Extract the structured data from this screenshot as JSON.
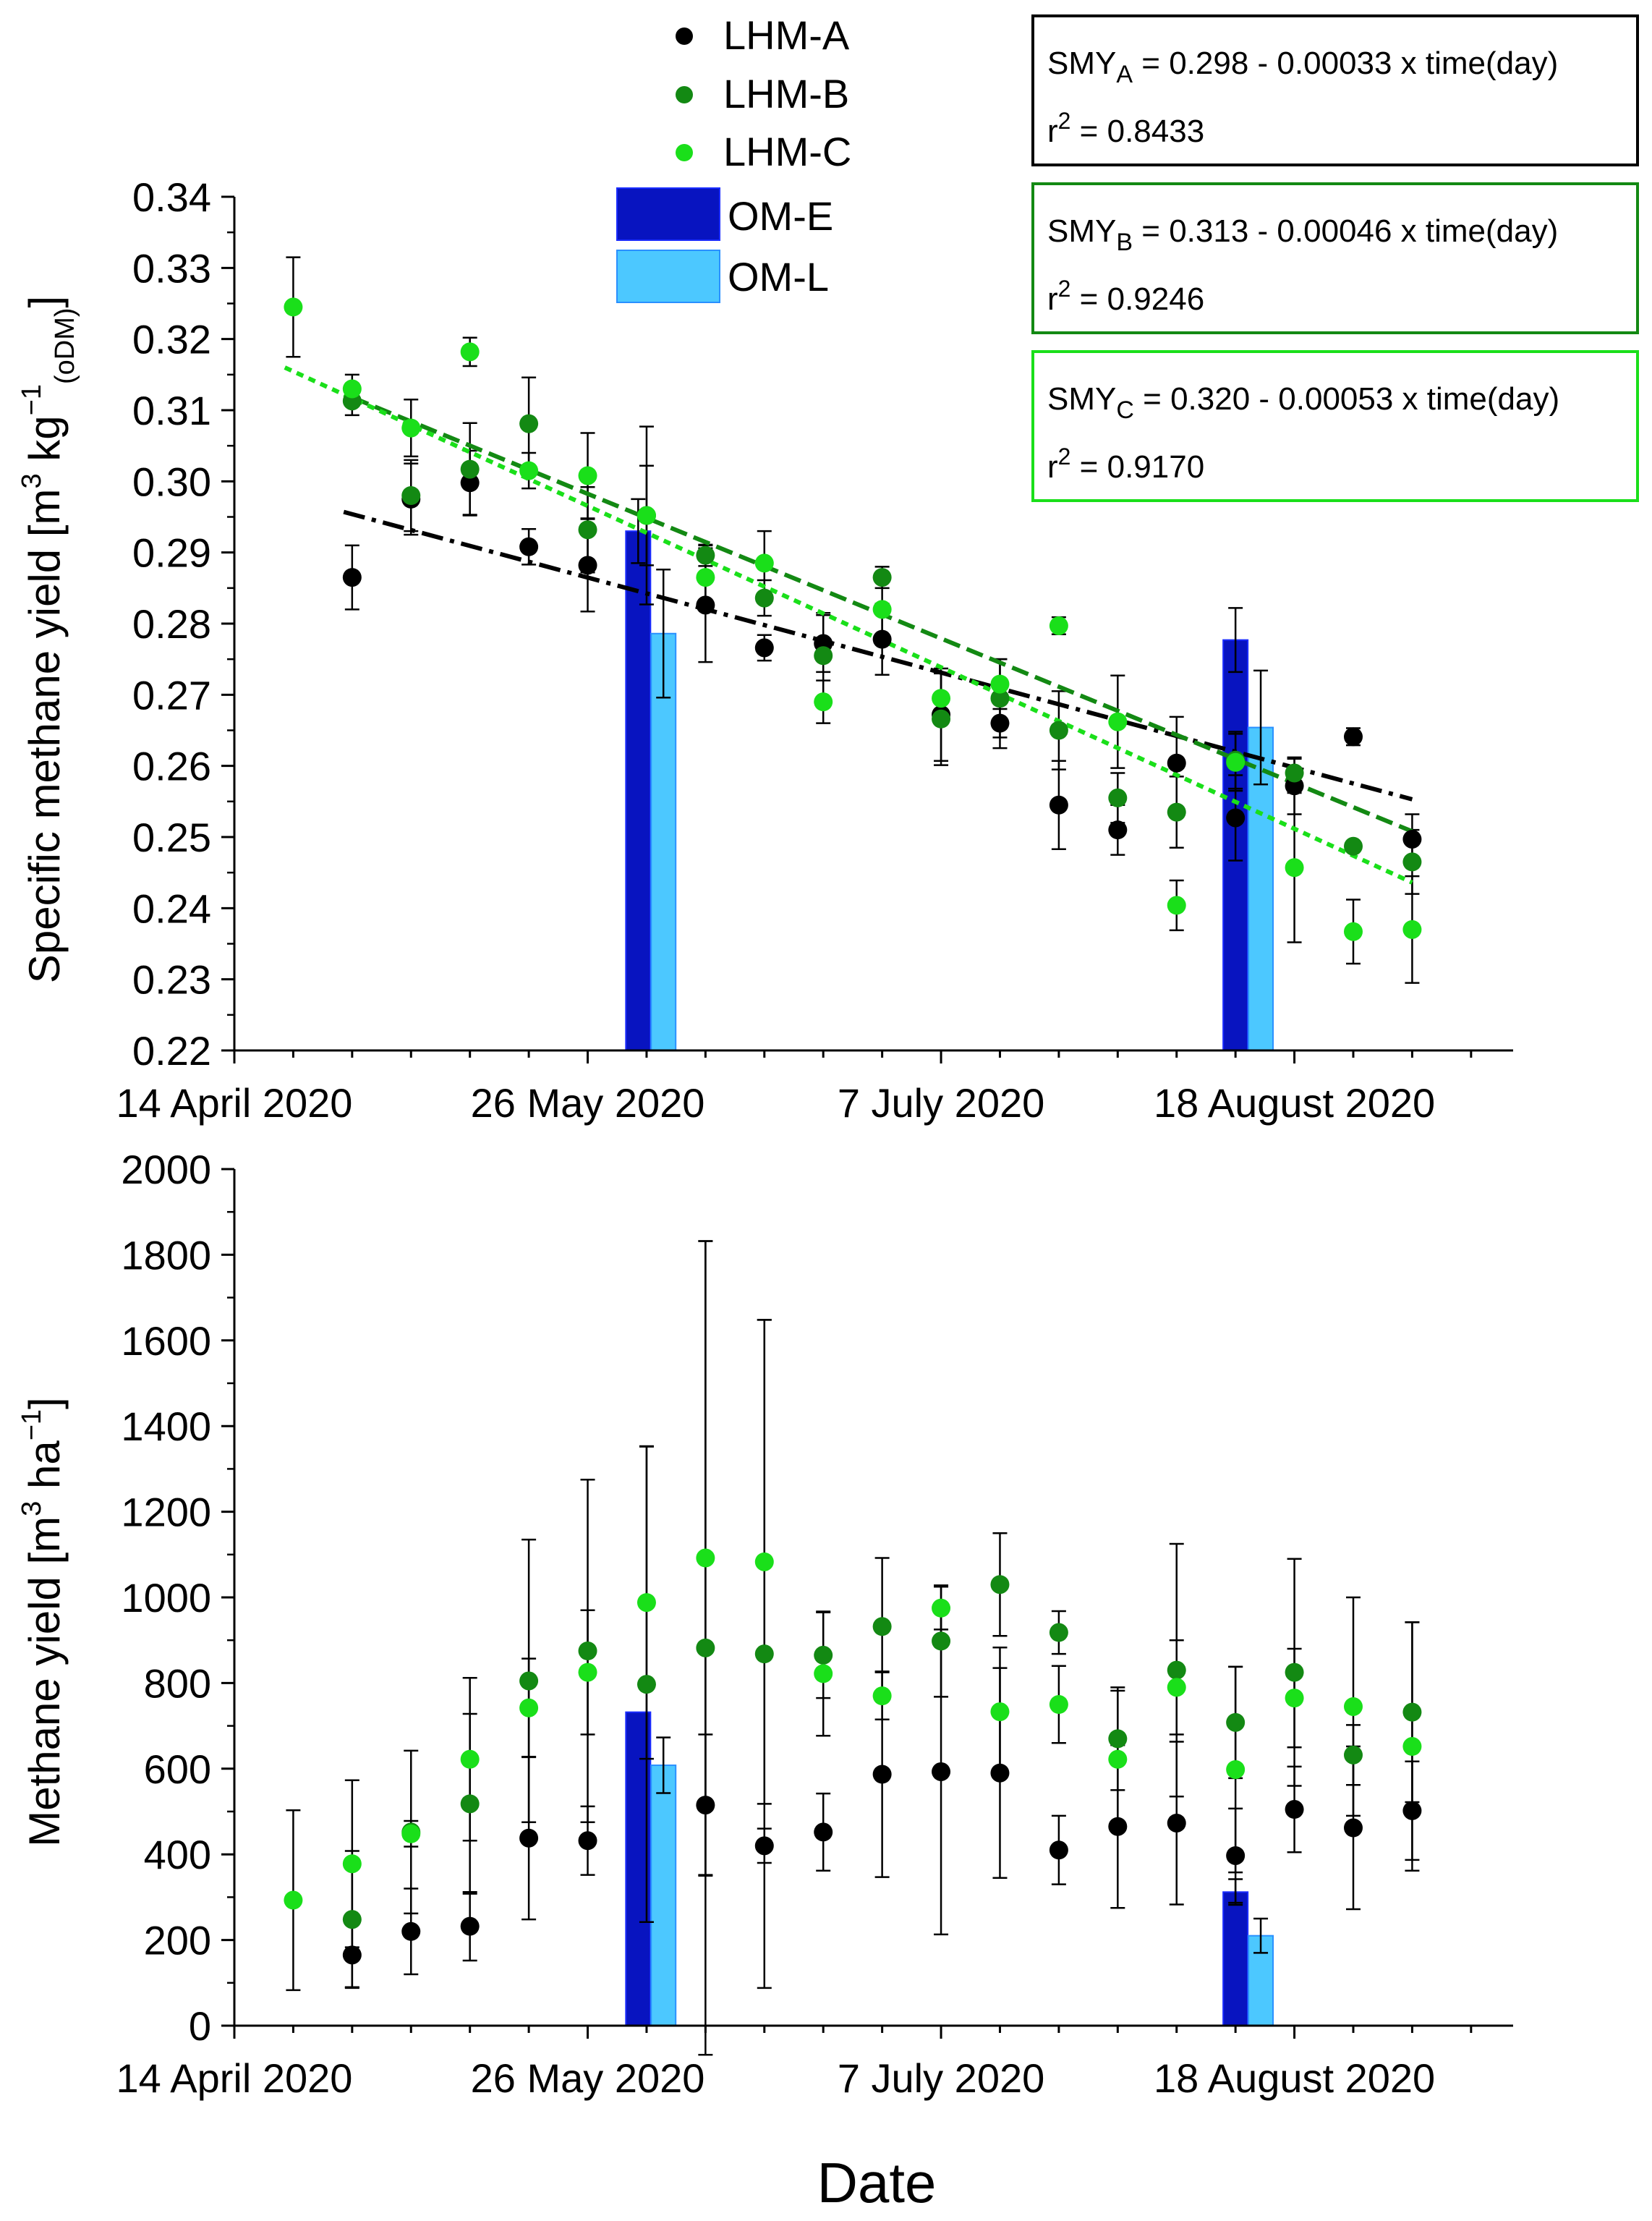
{
  "colors": {
    "LHM-A": "#000000",
    "LHM-B": "#138913",
    "LHM-C": "#1adf1a",
    "OM-E": "#0814c0",
    "OM-L": "#4cc8ff"
  },
  "x_axis": {
    "title": "Date",
    "tick_labels": [
      "14 April 2020",
      "26 May 2020",
      "7 July 2020",
      "18 August 2020"
    ],
    "tick_days": [
      0,
      42,
      84,
      126
    ],
    "range_days": [
      0,
      152
    ]
  },
  "legend": {
    "entries": [
      "LHM-A",
      "LHM-B",
      "LHM-C",
      "OM-E",
      "OM-L"
    ]
  },
  "regressions": [
    {
      "name": "SMYA",
      "sub": "A",
      "slope_text": " = 0.298 - 0.00033 x time(day)",
      "r2_label": "r",
      "r2_value": " = 0.8433",
      "color": "#000000"
    },
    {
      "name": "SMYB",
      "sub": "B",
      "slope_text": " = 0.313 - 0.00046 x time(day)",
      "r2_label": "r",
      "r2_value": " = 0.9246",
      "color": "#138913"
    },
    {
      "name": "SMYC",
      "sub": "C",
      "slope_text": " = 0.320 - 0.00053 x time(day)",
      "r2_label": "r",
      "r2_value": " = 0.9170",
      "color": "#1adf1a"
    }
  ],
  "chart_data": [
    {
      "type": "scatter",
      "title": "",
      "ylabel": "Specific methane yield [m3 kg-1 (oDM)]",
      "ylabel_parts": [
        "Specific methane yield [m",
        "3",
        " kg",
        "−1",
        "(oDM)",
        "]"
      ],
      "xlabel": "",
      "ylim": [
        0.22,
        0.34
      ],
      "yticks": [
        0.22,
        0.23,
        0.24,
        0.25,
        0.26,
        0.27,
        0.28,
        0.29,
        0.3,
        0.31,
        0.32,
        0.33,
        0.34
      ],
      "yticks_labels": [
        "0.22",
        "0.23",
        "0.24",
        "0.25",
        "0.26",
        "0.27",
        "0.28",
        "0.29",
        "0.30",
        "0.31",
        "0.32",
        "0.33",
        "0.34"
      ],
      "series": [
        {
          "name": "LHM-A",
          "x": [
            14,
            21,
            28,
            35,
            42,
            56,
            63,
            70,
            77,
            84,
            91,
            98,
            105,
            112,
            119,
            126,
            133,
            140
          ],
          "y": [
            0.2865,
            0.2975,
            0.2998,
            0.2908,
            0.2882,
            0.2826,
            0.2766,
            0.2772,
            0.2778,
            0.2672,
            0.266,
            0.2545,
            0.251,
            0.2604,
            0.2527,
            0.2572,
            0.2641,
            0.2497
          ],
          "err": [
            0.0045,
            0.005,
            0.0045,
            0.0025,
            0.0065,
            0.008,
            0.0018,
            0.004,
            0.005,
            0.0065,
            0.0035,
            0.0062,
            0.0035,
            0.0065,
            0.006,
            0.004,
            0.0012,
            0.0035
          ]
        },
        {
          "name": "LHM-B",
          "x": [
            14,
            21,
            28,
            35,
            42,
            49,
            56,
            63,
            70,
            77,
            84,
            91,
            98,
            105,
            112,
            119,
            126,
            133,
            140
          ],
          "y": [
            0.3113,
            0.298,
            0.3017,
            0.3081,
            0.2932,
            0.2952,
            0.2896,
            0.2836,
            0.2755,
            0.2865,
            0.2666,
            0.2695,
            0.265,
            0.2555,
            0.2535,
            0.2608,
            0.259,
            0.2487,
            0.2465
          ],
          "err": [
            0.002,
            0.005,
            0.0065,
            0.0065,
            0.006,
            0.0125,
            0.0015,
            0.0025,
            0.006,
            0.0015,
            0.0065,
            0.0055,
            0.0055,
            0.0035,
            0.005,
            0.004,
            0.002,
            0.0007,
            0.0045
          ]
        },
        {
          "name": "LHM-C",
          "x": [
            7,
            14,
            21,
            28,
            35,
            42,
            49,
            56,
            63,
            70,
            77,
            84,
            91,
            98,
            105,
            112,
            119,
            126,
            133,
            140
          ],
          "y": [
            0.3245,
            0.313,
            0.3075,
            0.3182,
            0.3015,
            0.3008,
            0.2952,
            0.2865,
            0.2885,
            0.269,
            0.282,
            0.2695,
            0.2715,
            0.2797,
            0.2662,
            0.2404,
            0.2605,
            0.2457,
            0.2367,
            0.237
          ],
          "err": [
            0.007,
            0.002,
            0.004,
            0.002,
            0.0025,
            0.006,
            0.007,
            0.0045,
            0.0045,
            0.003,
            0.004,
            0.0035,
            0.0035,
            0.0012,
            0.0065,
            0.0035,
            0.004,
            0.0105,
            0.0045,
            0.0075
          ]
        }
      ],
      "bars": [
        {
          "name": "OM-E",
          "x": [
            48,
            119
          ],
          "y": [
            0.293,
            0.2777
          ],
          "err": [
            0.0045,
            0.0045
          ]
        },
        {
          "name": "OM-L",
          "x": [
            51,
            122
          ],
          "y": [
            0.2786,
            0.2654
          ],
          "err": [
            0.009,
            0.008
          ]
        }
      ],
      "trendlines": [
        {
          "name": "LHM-A",
          "style": "dash-dot",
          "x": [
            13,
            140
          ],
          "y": [
            0.2957,
            0.2553
          ]
        },
        {
          "name": "LHM-B",
          "style": "dashed",
          "x": [
            14,
            140
          ],
          "y": [
            0.3118,
            0.2508
          ]
        },
        {
          "name": "LHM-C",
          "style": "dotted",
          "x": [
            6,
            140
          ],
          "y": [
            0.316,
            0.2436
          ]
        }
      ]
    },
    {
      "type": "scatter",
      "title": "",
      "ylabel": "Methane yield [m3 ha-1]",
      "ylabel_parts": [
        "Methane yield [m",
        "3",
        " ha",
        "−1",
        "",
        "]"
      ],
      "xlabel": "Date",
      "ylim": [
        0,
        2000
      ],
      "yticks": [
        0,
        200,
        400,
        600,
        800,
        1000,
        1200,
        1400,
        1600,
        1800,
        2000
      ],
      "yticks_labels": [
        "0",
        "200",
        "400",
        "600",
        "800",
        "1000",
        "1200",
        "1400",
        "1600",
        "1800",
        "2000"
      ],
      "series": [
        {
          "name": "LHM-A",
          "x": [
            14,
            21,
            28,
            35,
            42,
            56,
            63,
            70,
            77,
            84,
            91,
            98,
            105,
            112,
            119,
            126,
            133,
            140
          ],
          "y": [
            165,
            220,
            232,
            438,
            432,
            515,
            420,
            452,
            587,
            593,
            590,
            410,
            465,
            473,
            397,
            505,
            462,
            502
          ],
          "err": [
            75,
            100,
            80,
            190,
            80,
            165,
            40,
            90,
            240,
            380,
            245,
            80,
            190,
            190,
            110,
            100,
            190,
            115
          ]
        },
        {
          "name": "LHM-B",
          "x": [
            14,
            21,
            28,
            35,
            42,
            49,
            56,
            63,
            70,
            77,
            84,
            91,
            98,
            105,
            112,
            119,
            126,
            133,
            140
          ],
          "y": [
            248,
            452,
            518,
            805,
            875,
            797,
            882,
            868,
            865,
            932,
            898,
            1030,
            918,
            670,
            830,
            708,
            825,
            632,
            732
          ],
          "err": [
            160,
            190,
            210,
            330,
            400,
            555,
            950,
            780,
            100,
            160,
            130,
            120,
            50,
            120,
            295,
            130,
            265,
            70,
            210
          ]
        },
        {
          "name": "LHM-C",
          "x": [
            7,
            14,
            21,
            28,
            35,
            42,
            49,
            56,
            63,
            70,
            77,
            84,
            91,
            98,
            105,
            112,
            119,
            126,
            133,
            140
          ],
          "y": [
            293,
            378,
            448,
            622,
            742,
            825,
            988,
            1092,
            1083,
            822,
            770,
            975,
            733,
            750,
            622,
            790,
            598,
            765,
            745,
            652
          ],
          "err": [
            210,
            195,
            30,
            190,
            115,
            145,
            365,
            740,
            565,
            145,
            55,
            50,
            150,
            90,
            160,
            110,
            240,
            115,
            255,
            290
          ]
        }
      ],
      "bars": [
        {
          "name": "OM-E",
          "x": [
            48,
            119
          ],
          "y": [
            732,
            312
          ],
          "err": [
            0,
            30
          ]
        },
        {
          "name": "OM-L",
          "x": [
            51,
            122
          ],
          "y": [
            608,
            210
          ],
          "err": [
            65,
            40
          ]
        }
      ],
      "trendlines": []
    }
  ]
}
